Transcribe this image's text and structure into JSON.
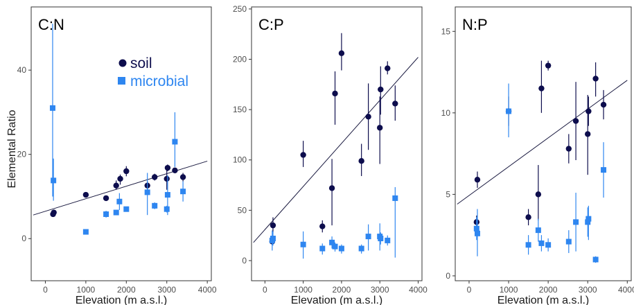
{
  "colors": {
    "soil": "#0d0d4d",
    "microbial": "#2e86f0",
    "fit": "#1a1a40"
  },
  "legend": {
    "soil": "soil",
    "microbial": "microbial",
    "placement": "top-right inside first panel"
  },
  "ylabel": "Elemental Ratio",
  "chart_data": [
    {
      "type": "scatter",
      "title": "C:N",
      "xlabel": "Elevation (m a.s.l.)",
      "xlim": [
        -350,
        4100
      ],
      "ylim": [
        -10,
        55
      ],
      "xticks": [
        0,
        1000,
        2000,
        3000,
        4000
      ],
      "yticks": [
        0,
        20,
        40
      ],
      "ytick_labels": [
        "0",
        "20",
        "40"
      ],
      "fit": [
        [
          -300,
          5.6
        ],
        [
          4000,
          18.4
        ]
      ],
      "series": [
        {
          "name": "soil",
          "marker": "circle",
          "points": [
            {
              "x": 190,
              "y": 5.8,
              "lo": 5.4,
              "hi": 6.2
            },
            {
              "x": 210,
              "y": 6.2,
              "lo": 5.8,
              "hi": 6.6
            },
            {
              "x": 1000,
              "y": 10.4,
              "lo": 10.0,
              "hi": 10.8
            },
            {
              "x": 1500,
              "y": 9.6,
              "lo": 9.2,
              "hi": 10.0
            },
            {
              "x": 1750,
              "y": 12.6,
              "lo": 11.6,
              "hi": 13.8
            },
            {
              "x": 1850,
              "y": 14.2,
              "lo": 12.8,
              "hi": 15.2
            },
            {
              "x": 2000,
              "y": 16.0,
              "lo": 14.8,
              "hi": 17.2
            },
            {
              "x": 2520,
              "y": 12.6,
              "lo": 11.6,
              "hi": 13.6
            },
            {
              "x": 2700,
              "y": 14.6,
              "lo": 13.8,
              "hi": 15.4
            },
            {
              "x": 3000,
              "y": 14.2,
              "lo": 11.6,
              "hi": 16.6
            },
            {
              "x": 3020,
              "y": 16.8,
              "lo": 16.0,
              "hi": 17.6
            },
            {
              "x": 3200,
              "y": 16.2,
              "lo": 15.6,
              "hi": 16.8
            },
            {
              "x": 3400,
              "y": 14.6,
              "lo": 13.6,
              "hi": 15.6
            }
          ]
        },
        {
          "name": "microbial",
          "marker": "square",
          "points": [
            {
              "x": 180,
              "y": 31.0,
              "lo": 10.0,
              "hi": 51.0
            },
            {
              "x": 200,
              "y": 13.8,
              "lo": 9.0,
              "hi": 19.0
            },
            {
              "x": 1000,
              "y": 1.6,
              "lo": 1.4,
              "hi": 1.8
            },
            {
              "x": 1500,
              "y": 5.8,
              "lo": 5.0,
              "hi": 6.6
            },
            {
              "x": 1750,
              "y": 6.2,
              "lo": 5.6,
              "hi": 6.8
            },
            {
              "x": 1830,
              "y": 8.8,
              "lo": 6.8,
              "hi": 10.8
            },
            {
              "x": 2000,
              "y": 7.0,
              "lo": 6.4,
              "hi": 7.6
            },
            {
              "x": 2520,
              "y": 11.0,
              "lo": 5.6,
              "hi": 15.6
            },
            {
              "x": 2700,
              "y": 7.8,
              "lo": 7.0,
              "hi": 8.6
            },
            {
              "x": 3000,
              "y": 7.0,
              "lo": 6.2,
              "hi": 7.8
            },
            {
              "x": 3020,
              "y": 10.4,
              "lo": 5.6,
              "hi": 15.0
            },
            {
              "x": 3200,
              "y": 23.0,
              "lo": 17.0,
              "hi": 30.0
            },
            {
              "x": 3400,
              "y": 11.2,
              "lo": 8.8,
              "hi": 13.6
            }
          ]
        }
      ]
    },
    {
      "type": "scatter",
      "title": "C:P",
      "xlabel": "Elevation (m a.s.l.)",
      "xlim": [
        -350,
        4100
      ],
      "ylim": [
        -20,
        252
      ],
      "xticks": [
        0,
        1000,
        2000,
        3000,
        4000
      ],
      "yticks": [
        0,
        50,
        100,
        150,
        200,
        250
      ],
      "ytick_labels": [
        "0",
        "50",
        "100",
        "150",
        "200",
        "250"
      ],
      "fit": [
        [
          -300,
          18
        ],
        [
          4000,
          202
        ]
      ],
      "series": [
        {
          "name": "soil",
          "marker": "circle",
          "points": [
            {
              "x": 190,
              "y": 19,
              "lo": 16,
              "hi": 22
            },
            {
              "x": 210,
              "y": 35,
              "lo": 27,
              "hi": 43
            },
            {
              "x": 1000,
              "y": 105,
              "lo": 93,
              "hi": 119
            },
            {
              "x": 1500,
              "y": 34,
              "lo": 28,
              "hi": 40
            },
            {
              "x": 1750,
              "y": 72,
              "lo": 35,
              "hi": 101
            },
            {
              "x": 1830,
              "y": 166,
              "lo": 135,
              "hi": 188
            },
            {
              "x": 2000,
              "y": 206,
              "lo": 189,
              "hi": 226
            },
            {
              "x": 2520,
              "y": 99,
              "lo": 84,
              "hi": 116
            },
            {
              "x": 2700,
              "y": 143,
              "lo": 110,
              "hi": 176
            },
            {
              "x": 3000,
              "y": 132,
              "lo": 96,
              "hi": 163
            },
            {
              "x": 3020,
              "y": 170,
              "lo": 145,
              "hi": 193
            },
            {
              "x": 3200,
              "y": 191,
              "lo": 185,
              "hi": 198
            },
            {
              "x": 3400,
              "y": 156,
              "lo": 139,
              "hi": 174
            }
          ]
        },
        {
          "name": "microbial",
          "marker": "square",
          "points": [
            {
              "x": 190,
              "y": 20,
              "lo": 10,
              "hi": 30
            },
            {
              "x": 210,
              "y": 22,
              "lo": 15,
              "hi": 29
            },
            {
              "x": 1000,
              "y": 16,
              "lo": 2,
              "hi": 29
            },
            {
              "x": 1500,
              "y": 12,
              "lo": 6,
              "hi": 17
            },
            {
              "x": 1750,
              "y": 18,
              "lo": 12,
              "hi": 24
            },
            {
              "x": 1830,
              "y": 14,
              "lo": 9,
              "hi": 18
            },
            {
              "x": 2000,
              "y": 12,
              "lo": 7,
              "hi": 16
            },
            {
              "x": 2520,
              "y": 12,
              "lo": 7,
              "hi": 16
            },
            {
              "x": 2700,
              "y": 24,
              "lo": 10,
              "hi": 36
            },
            {
              "x": 3000,
              "y": 24,
              "lo": 10,
              "hi": 37
            },
            {
              "x": 3020,
              "y": 22,
              "lo": 16,
              "hi": 28
            },
            {
              "x": 3200,
              "y": 20,
              "lo": 15,
              "hi": 25
            },
            {
              "x": 3400,
              "y": 62,
              "lo": 3,
              "hi": 73
            }
          ]
        }
      ]
    },
    {
      "type": "scatter",
      "title": "N:P",
      "xlabel": "Elevation (m a.s.l.)",
      "xlim": [
        -350,
        4100
      ],
      "ylim": [
        -0.3,
        16.5
      ],
      "xticks": [
        0,
        1000,
        2000,
        3000,
        4000
      ],
      "yticks": [
        0,
        5,
        10,
        15
      ],
      "ytick_labels": [
        "0",
        "5",
        "10",
        "15"
      ],
      "fit": [
        [
          -300,
          4.4
        ],
        [
          4000,
          12.0
        ]
      ],
      "series": [
        {
          "name": "soil",
          "marker": "circle",
          "points": [
            {
              "x": 190,
              "y": 3.3,
              "lo": 2.9,
              "hi": 3.7
            },
            {
              "x": 210,
              "y": 5.9,
              "lo": 5.4,
              "hi": 6.4
            },
            {
              "x": 1000,
              "y": 10.1,
              "lo": 9.2,
              "hi": 11.0
            },
            {
              "x": 1500,
              "y": 3.6,
              "lo": 3.1,
              "hi": 4.1
            },
            {
              "x": 1750,
              "y": 5.0,
              "lo": 3.4,
              "hi": 6.8
            },
            {
              "x": 1830,
              "y": 11.5,
              "lo": 10.0,
              "hi": 13.2
            },
            {
              "x": 2000,
              "y": 12.9,
              "lo": 12.6,
              "hi": 13.2
            },
            {
              "x": 2520,
              "y": 7.8,
              "lo": 6.9,
              "hi": 8.7
            },
            {
              "x": 2700,
              "y": 9.5,
              "lo": 7.1,
              "hi": 11.9
            },
            {
              "x": 3000,
              "y": 8.7,
              "lo": 6.2,
              "hi": 11.1
            },
            {
              "x": 3020,
              "y": 10.1,
              "lo": 9.2,
              "hi": 11.0
            },
            {
              "x": 3200,
              "y": 12.1,
              "lo": 11.0,
              "hi": 13.1
            },
            {
              "x": 3400,
              "y": 10.5,
              "lo": 9.6,
              "hi": 11.4
            }
          ]
        },
        {
          "name": "microbial",
          "marker": "square",
          "points": [
            {
              "x": 190,
              "y": 2.9,
              "lo": 2.2,
              "hi": 3.6
            },
            {
              "x": 210,
              "y": 2.6,
              "lo": 1.2,
              "hi": 4.1
            },
            {
              "x": 1000,
              "y": 10.1,
              "lo": 8.5,
              "hi": 11.8
            },
            {
              "x": 1500,
              "y": 1.9,
              "lo": 1.3,
              "hi": 2.5
            },
            {
              "x": 1750,
              "y": 2.8,
              "lo": 2.1,
              "hi": 3.5
            },
            {
              "x": 1830,
              "y": 2.0,
              "lo": 1.5,
              "hi": 2.5
            },
            {
              "x": 2000,
              "y": 1.9,
              "lo": 1.5,
              "hi": 2.3
            },
            {
              "x": 2520,
              "y": 2.1,
              "lo": 1.4,
              "hi": 2.8
            },
            {
              "x": 2700,
              "y": 3.3,
              "lo": 1.5,
              "hi": 5.1
            },
            {
              "x": 3000,
              "y": 3.3,
              "lo": 2.4,
              "hi": 4.2
            },
            {
              "x": 3020,
              "y": 3.5,
              "lo": 2.2,
              "hi": 4.3
            },
            {
              "x": 3200,
              "y": 1.0,
              "lo": 0.8,
              "hi": 1.2
            },
            {
              "x": 3400,
              "y": 6.5,
              "lo": 4.8,
              "hi": 8.2
            }
          ]
        }
      ]
    }
  ]
}
